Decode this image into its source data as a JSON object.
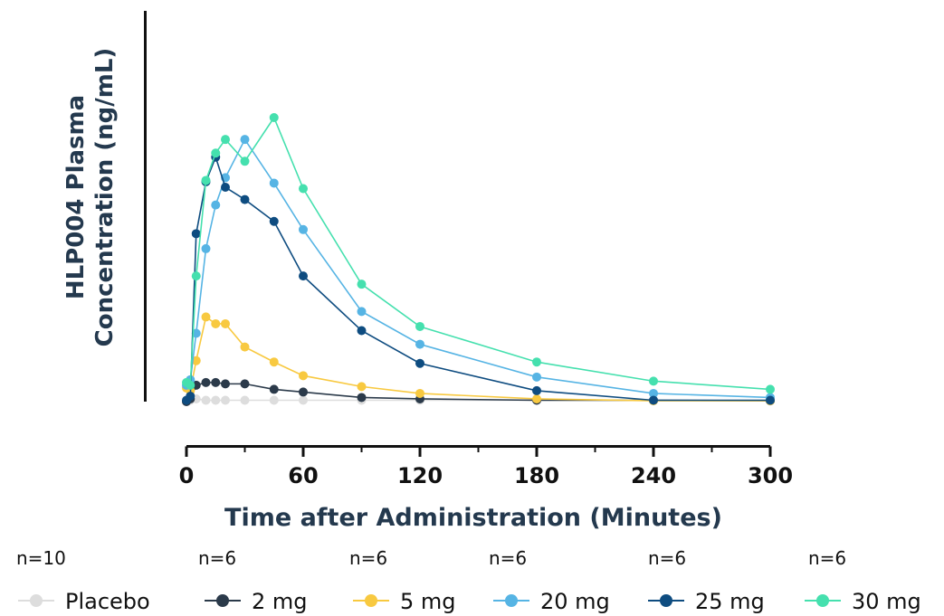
{
  "chart_data": {
    "type": "line",
    "title": "",
    "xlabel": "Time after Administration (Minutes)",
    "ylabel_line1": "HLP004 Plasma",
    "ylabel_line2": "Concentration (ng/mL)",
    "xlim": [
      0,
      300
    ],
    "ylim": [
      0,
      100
    ],
    "y_ticks_shown": false,
    "x_ticks": [
      "0",
      "60",
      "120",
      "180",
      "240",
      "300"
    ],
    "grid": false,
    "legend_position": "bottom",
    "x": [
      0,
      2,
      5,
      10,
      15,
      20,
      30,
      45,
      60,
      90,
      120,
      180,
      240,
      300
    ],
    "series": [
      {
        "name": "Placebo",
        "n_label": "n=10",
        "color": "#dddddd",
        "values": [
          0,
          0.5,
          1,
          0.5,
          0.5,
          0.5,
          0.5,
          0.5,
          0.5,
          0.5,
          0.5,
          0.5,
          0.5,
          0.5
        ]
      },
      {
        "name": "2 mg",
        "n_label": "n=6",
        "color": "#2b3a4a",
        "values": [
          0,
          1,
          6,
          7,
          7,
          6.5,
          6.5,
          4.5,
          3.5,
          1.5,
          1,
          0.5,
          0.5,
          0.3
        ]
      },
      {
        "name": "5 mg",
        "n_label": "n=6",
        "color": "#f8c940",
        "values": [
          5,
          4,
          15,
          31,
          28.5,
          28.5,
          20,
          14.5,
          9.5,
          5.5,
          3,
          1,
          0.3,
          0.3
        ]
      },
      {
        "name": "20 mg",
        "n_label": "n=6",
        "color": "#56b4e4",
        "values": [
          6,
          8,
          25,
          56,
          72,
          82,
          96,
          80,
          63,
          33,
          21,
          9,
          3,
          1.5
        ]
      },
      {
        "name": "25 mg",
        "n_label": "n=6",
        "color": "#0e4c80",
        "values": [
          0.5,
          2,
          61.5,
          80.5,
          89.5,
          78.5,
          74,
          66,
          46,
          26,
          14,
          4,
          0.5,
          0.5
        ]
      },
      {
        "name": "30 mg",
        "n_label": "n=6",
        "color": "#45e0ae",
        "values": [
          7,
          6,
          46,
          81,
          91,
          96,
          88,
          104,
          78,
          43,
          27.5,
          14.5,
          7.5,
          4.5
        ]
      }
    ]
  }
}
